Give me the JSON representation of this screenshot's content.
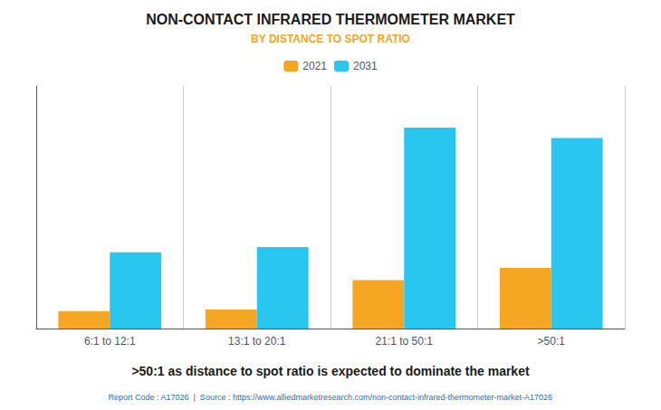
{
  "chart_data": {
    "type": "bar",
    "title": "NON-CONTACT INFRARED THERMOMETER MARKET",
    "subtitle": "BY DISTANCE TO SPOT RATIO",
    "categories": [
      "6:1 to 12:1",
      "13:1 to 20:1",
      "21:1 to 50:1",
      ">50:1"
    ],
    "series": [
      {
        "name": "2021",
        "color": "#F5A623",
        "values": [
          0.5,
          0.55,
          1.4,
          1.75
        ]
      },
      {
        "name": "2031",
        "color": "#29C6F0",
        "values": [
          2.2,
          2.35,
          5.8,
          5.5
        ]
      }
    ],
    "ylim": [
      0,
      7
    ],
    "yticks": [],
    "tick_labels": "x",
    "grid": false,
    "legend": "top",
    "annotations": [
      ">50:1 as distance to spot ratio is expected to dominate the market",
      "Report Code : A17026  |  Source : https://www.alliedmarketresearch.com/non-contact-infrared-thermometer-market-A17026"
    ]
  }
}
